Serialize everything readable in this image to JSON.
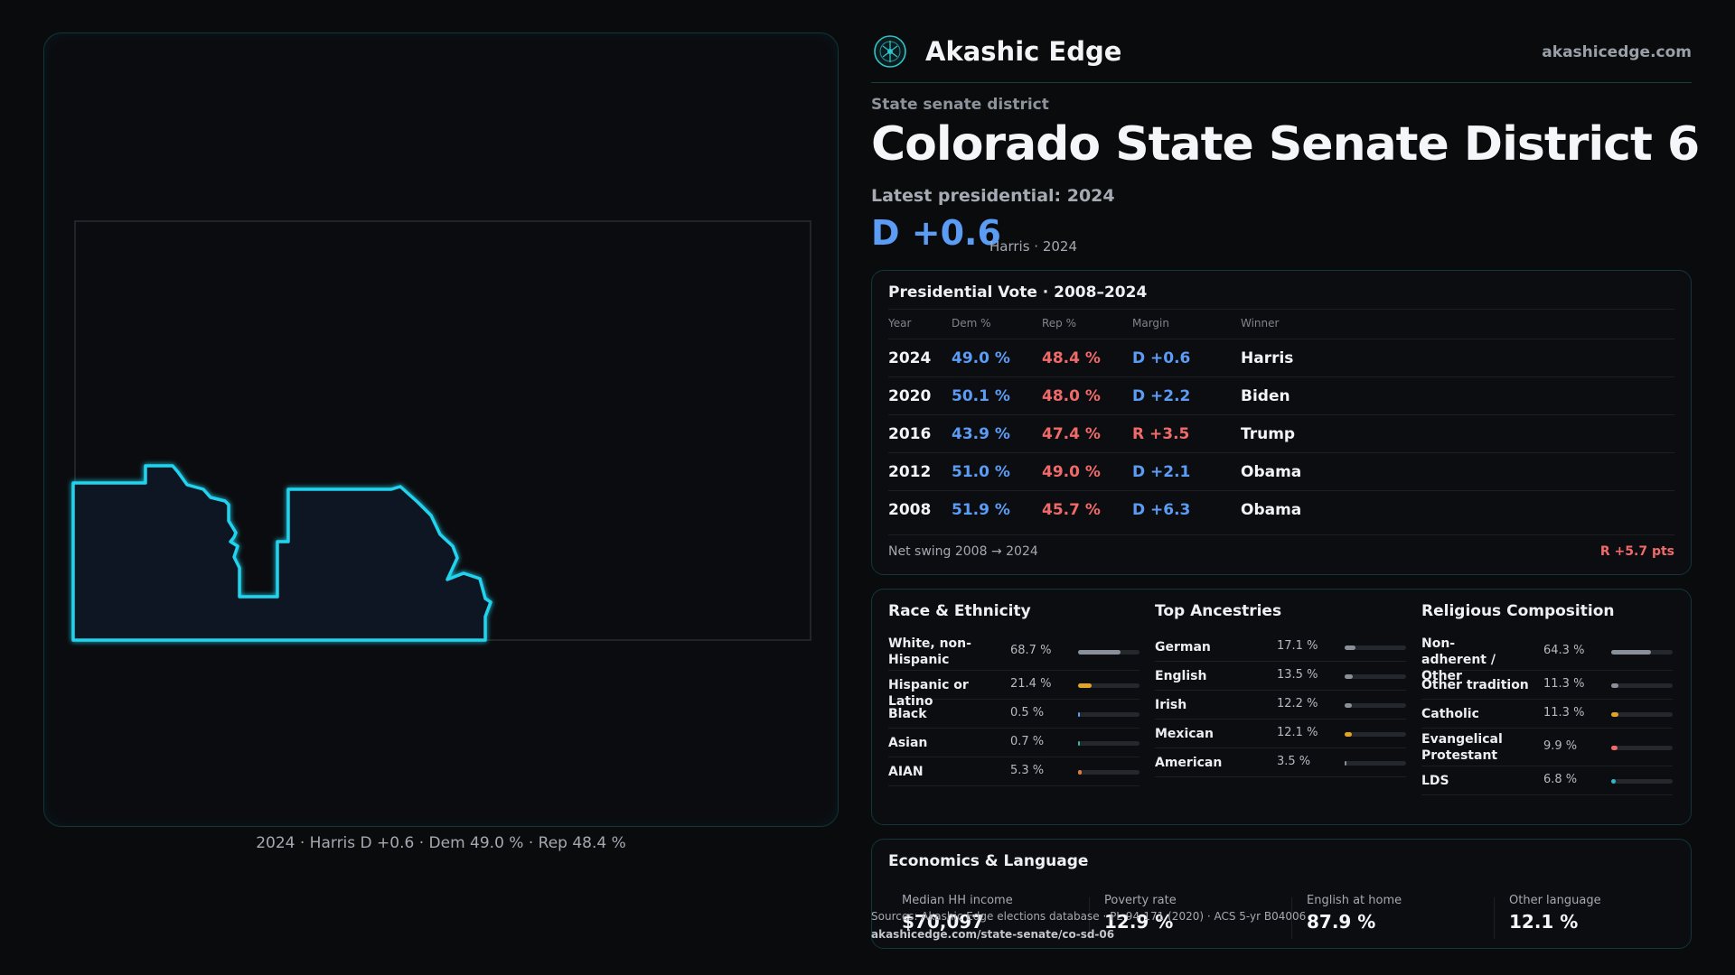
{
  "brand": {
    "name": "Akashic Edge",
    "url": "akashicedge.com"
  },
  "header": {
    "kicker": "State senate district",
    "title": "Colorado State Senate District 6",
    "latest": "Latest presidential: 2024",
    "margin": "D +0.6",
    "margin_sub": "Harris · 2024"
  },
  "map": {
    "caption": "2024 · Harris D +0.6 · Dem 49.0 % · Rep 48.4 %",
    "outline_color": "#22d3ee"
  },
  "vote_table": {
    "title": "Presidential Vote · 2008–2024",
    "headers": {
      "year": "Year",
      "dem": "Dem %",
      "rep": "Rep %",
      "margin": "Margin",
      "winner": "Winner"
    },
    "rows": [
      {
        "year": "2024",
        "dem": "49.0 %",
        "rep": "48.4 %",
        "margin": "D +0.6",
        "winner": "Harris",
        "party": "D"
      },
      {
        "year": "2020",
        "dem": "50.1 %",
        "rep": "48.0 %",
        "margin": "D +2.2",
        "winner": "Biden",
        "party": "D"
      },
      {
        "year": "2016",
        "dem": "43.9 %",
        "rep": "47.4 %",
        "margin": "R +3.5",
        "winner": "Trump",
        "party": "R"
      },
      {
        "year": "2012",
        "dem": "51.0 %",
        "rep": "49.0 %",
        "margin": "D +2.1",
        "winner": "Obama",
        "party": "D"
      },
      {
        "year": "2008",
        "dem": "51.9 %",
        "rep": "45.7 %",
        "margin": "D +6.3",
        "winner": "Obama",
        "party": "D"
      }
    ],
    "net_swing_label": "Net swing 2008 → 2024",
    "net_swing_value": "R +5.7 pts"
  },
  "race": {
    "title": "Race & Ethnicity",
    "items": [
      {
        "label": "White, non-Hispanic",
        "pct": "68.7 %",
        "value": 68.7,
        "color": "#8a9099"
      },
      {
        "label": "Hispanic or Latino",
        "pct": "21.4 %",
        "value": 21.4,
        "color": "#e0a326"
      },
      {
        "label": "Black",
        "pct": "0.5 %",
        "value": 0.5,
        "color": "#5b9cf5"
      },
      {
        "label": "Asian",
        "pct": "0.7 %",
        "value": 0.7,
        "color": "#2fb8a6"
      },
      {
        "label": "AIAN",
        "pct": "5.3 %",
        "value": 5.3,
        "color": "#e07a3a"
      }
    ]
  },
  "ancestry": {
    "title": "Top Ancestries",
    "items": [
      {
        "label": "German",
        "pct": "17.1 %",
        "value": 17.1,
        "color": "#8a9099"
      },
      {
        "label": "English",
        "pct": "13.5 %",
        "value": 13.5,
        "color": "#8a9099"
      },
      {
        "label": "Irish",
        "pct": "12.2 %",
        "value": 12.2,
        "color": "#8a9099"
      },
      {
        "label": "Mexican",
        "pct": "12.1 %",
        "value": 12.1,
        "color": "#e0a326"
      },
      {
        "label": "American",
        "pct": "3.5 %",
        "value": 3.5,
        "color": "#8a9099"
      }
    ]
  },
  "religion": {
    "title": "Religious Composition",
    "items": [
      {
        "label": "Non-adherent / Other",
        "pct": "64.3 %",
        "value": 64.3,
        "color": "#8a9099"
      },
      {
        "label": "Other tradition",
        "pct": "11.3 %",
        "value": 11.3,
        "color": "#8a9099"
      },
      {
        "label": "Catholic",
        "pct": "11.3 %",
        "value": 11.3,
        "color": "#e0a326"
      },
      {
        "label": "Evangelical Protestant",
        "pct": "9.9 %",
        "value": 9.9,
        "color": "#f06a6a"
      },
      {
        "label": "LDS",
        "pct": "6.8 %",
        "value": 6.8,
        "color": "#2fb8c6"
      }
    ]
  },
  "economics": {
    "title": "Economics & Language",
    "items": [
      {
        "label": "Median HH income",
        "value": "$70,097"
      },
      {
        "label": "Poverty rate",
        "value": "12.9 %"
      },
      {
        "label": "English at home",
        "value": "87.9 %"
      },
      {
        "label": "Other language",
        "value": "12.1 %"
      }
    ]
  },
  "footer": {
    "sources": "Sources: Akashic Edge elections database · PL 94-171 (2020) · ACS 5-yr B04006",
    "page_url": "akashicedge.com/state-senate/co-sd-06"
  }
}
